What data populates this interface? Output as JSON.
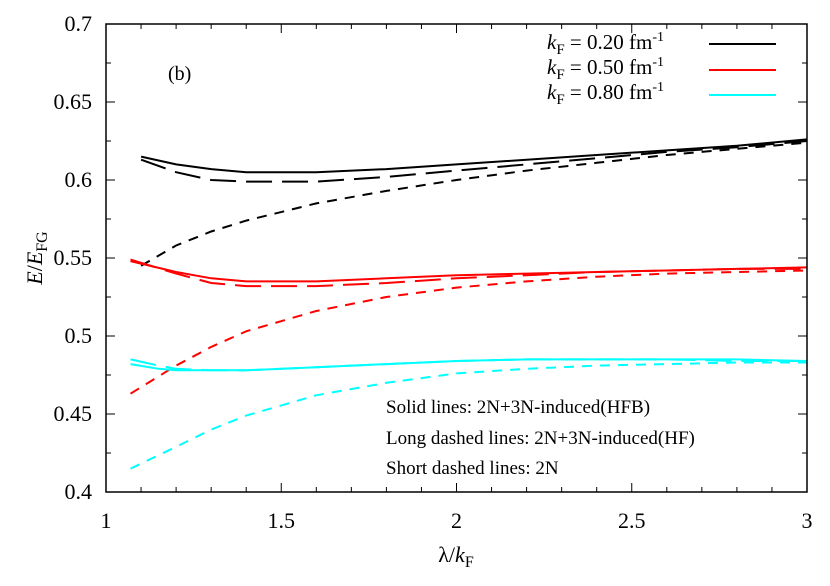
{
  "chart_data": {
    "type": "line",
    "panel_label": "(b)",
    "xlabel": "λ/k_F",
    "ylabel": "E/E_FG",
    "xlim": [
      1,
      3
    ],
    "ylim": [
      0.4,
      0.7
    ],
    "xticks": [
      "1",
      "1.5",
      "2",
      "2.5",
      "3"
    ],
    "yticks": [
      "0.4",
      "0.45",
      "0.5",
      "0.55",
      "0.6",
      "0.65",
      "0.7"
    ],
    "grid": false,
    "legend_position": "top-right",
    "legend": [
      {
        "label": "k_F = 0.20 fm^-1",
        "color": "#000000"
      },
      {
        "label": "k_F = 0.50 fm^-1",
        "color": "#ff0000"
      },
      {
        "label": "k_F = 0.80 fm^-1",
        "color": "#00ffff"
      }
    ],
    "annotations": [
      "Solid lines: 2N+3N-induced(HFB)",
      "Long dashed lines: 2N+3N-induced(HF)",
      "Short dashed lines: 2N"
    ],
    "series": [
      {
        "name": "kF=0.20 HFB (solid)",
        "color": "#000000",
        "style": "solid",
        "x": [
          1.1,
          1.2,
          1.3,
          1.4,
          1.6,
          1.8,
          2.0,
          2.2,
          2.4,
          2.6,
          2.8,
          3.0
        ],
        "y": [
          0.615,
          0.61,
          0.607,
          0.605,
          0.605,
          0.607,
          0.61,
          0.613,
          0.616,
          0.619,
          0.622,
          0.626
        ]
      },
      {
        "name": "kF=0.20 HF (long dashed)",
        "color": "#000000",
        "style": "longdash",
        "x": [
          1.1,
          1.2,
          1.3,
          1.4,
          1.6,
          1.8,
          2.0,
          2.2,
          2.4,
          2.6,
          2.8,
          3.0
        ],
        "y": [
          0.613,
          0.605,
          0.6,
          0.599,
          0.599,
          0.602,
          0.606,
          0.61,
          0.614,
          0.618,
          0.621,
          0.625
        ]
      },
      {
        "name": "kF=0.20 2N (short dashed)",
        "color": "#000000",
        "style": "shortdash",
        "x": [
          1.1,
          1.2,
          1.3,
          1.4,
          1.6,
          1.8,
          2.0,
          2.2,
          2.4,
          2.6,
          2.8,
          3.0
        ],
        "y": [
          0.545,
          0.558,
          0.567,
          0.574,
          0.585,
          0.593,
          0.6,
          0.606,
          0.611,
          0.616,
          0.62,
          0.624
        ]
      },
      {
        "name": "kF=0.50 HFB (solid)",
        "color": "#ff0000",
        "style": "solid",
        "x": [
          1.07,
          1.2,
          1.3,
          1.4,
          1.6,
          1.8,
          2.0,
          2.2,
          2.4,
          2.6,
          2.8,
          3.0
        ],
        "y": [
          0.548,
          0.541,
          0.537,
          0.535,
          0.535,
          0.537,
          0.539,
          0.54,
          0.541,
          0.542,
          0.543,
          0.544
        ]
      },
      {
        "name": "kF=0.50 HF (long dashed)",
        "color": "#ff0000",
        "style": "longdash",
        "x": [
          1.07,
          1.2,
          1.3,
          1.4,
          1.6,
          1.8,
          2.0,
          2.2,
          2.4,
          2.6,
          2.8,
          3.0
        ],
        "y": [
          0.549,
          0.54,
          0.534,
          0.532,
          0.532,
          0.534,
          0.537,
          0.539,
          0.541,
          0.542,
          0.543,
          0.543
        ]
      },
      {
        "name": "kF=0.50 2N (short dashed)",
        "color": "#ff0000",
        "style": "shortdash",
        "x": [
          1.07,
          1.2,
          1.3,
          1.4,
          1.6,
          1.8,
          2.0,
          2.2,
          2.4,
          2.6,
          2.8,
          3.0
        ],
        "y": [
          0.463,
          0.481,
          0.493,
          0.503,
          0.516,
          0.525,
          0.531,
          0.535,
          0.538,
          0.54,
          0.541,
          0.542
        ]
      },
      {
        "name": "kF=0.80 HFB (solid)",
        "color": "#00ffff",
        "style": "solid",
        "x": [
          1.07,
          1.15,
          1.2,
          1.3,
          1.4,
          1.6,
          1.8,
          2.0,
          2.2,
          2.4,
          2.6,
          2.8,
          3.0
        ],
        "y": [
          0.482,
          0.479,
          0.478,
          0.478,
          0.478,
          0.48,
          0.482,
          0.484,
          0.485,
          0.485,
          0.485,
          0.485,
          0.484
        ]
      },
      {
        "name": "kF=0.80 HF (long dashed)",
        "color": "#00ffff",
        "style": "longdash",
        "x": [
          1.07,
          1.15,
          1.2,
          1.3,
          1.4,
          1.6,
          1.8,
          2.0,
          2.2,
          2.4,
          2.6,
          2.8,
          3.0
        ],
        "y": [
          0.485,
          0.481,
          0.479,
          0.478,
          0.478,
          0.48,
          0.482,
          0.484,
          0.485,
          0.485,
          0.485,
          0.484,
          0.484
        ]
      },
      {
        "name": "kF=0.80 2N (short dashed)",
        "color": "#00ffff",
        "style": "shortdash",
        "x": [
          1.07,
          1.2,
          1.3,
          1.4,
          1.6,
          1.8,
          2.0,
          2.2,
          2.4,
          2.6,
          2.8,
          3.0
        ],
        "y": [
          0.415,
          0.429,
          0.44,
          0.449,
          0.462,
          0.47,
          0.476,
          0.479,
          0.481,
          0.482,
          0.483,
          0.483
        ]
      }
    ]
  }
}
